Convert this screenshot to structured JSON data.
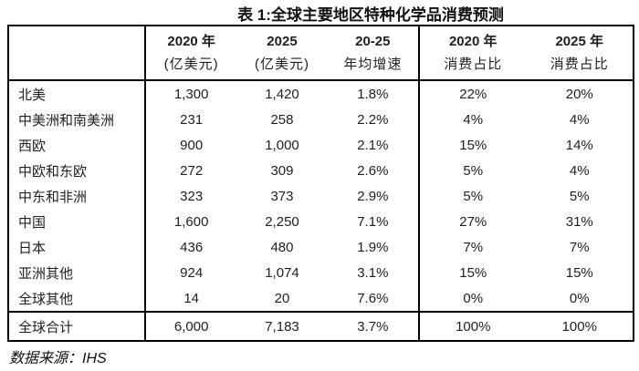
{
  "title": "表 1:全球主要地区特种化学品消费预测",
  "source_note": "数据来源：IHS",
  "colors": {
    "text": "#1f1f1f",
    "border": "#000000",
    "background": "#ffffff"
  },
  "table": {
    "header": {
      "region": "",
      "col1_line1": "2020 年",
      "col1_line2": "(亿美元)",
      "col2_line1": "2025",
      "col2_line2": "(亿美元)",
      "col3_line1": "20-25",
      "col3_line2": "年均增速",
      "col4_line1": "2020 年",
      "col4_line2": "消费占比",
      "col5_line1": "2025 年",
      "col5_line2": "消费占比"
    },
    "rows": [
      {
        "label": "北美",
        "v2020": "1,300",
        "v2025": "1,420",
        "growth": "1.8%",
        "share2020": "22%",
        "share2025": "20%"
      },
      {
        "label": "中美洲和南美洲",
        "v2020": "231",
        "v2025": "258",
        "growth": "2.2%",
        "share2020": "4%",
        "share2025": "4%"
      },
      {
        "label": "西欧",
        "v2020": "900",
        "v2025": "1,000",
        "growth": "2.1%",
        "share2020": "15%",
        "share2025": "14%"
      },
      {
        "label": "中欧和东欧",
        "v2020": "272",
        "v2025": "309",
        "growth": "2.6%",
        "share2020": "5%",
        "share2025": "4%"
      },
      {
        "label": "中东和非洲",
        "v2020": "323",
        "v2025": "373",
        "growth": "2.9%",
        "share2020": "5%",
        "share2025": "5%"
      },
      {
        "label": "中国",
        "v2020": "1,600",
        "v2025": "2,250",
        "growth": "7.1%",
        "share2020": "27%",
        "share2025": "31%"
      },
      {
        "label": "日本",
        "v2020": "436",
        "v2025": "480",
        "growth": "1.9%",
        "share2020": "7%",
        "share2025": "7%"
      },
      {
        "label": "亚洲其他",
        "v2020": "924",
        "v2025": "1,074",
        "growth": "3.1%",
        "share2020": "15%",
        "share2025": "15%"
      },
      {
        "label": "全球其他",
        "v2020": "14",
        "v2025": "20",
        "growth": "7.6%",
        "share2020": "0%",
        "share2025": "0%"
      }
    ],
    "total": {
      "label": "全球合计",
      "v2020": "6,000",
      "v2025": "7,183",
      "growth": "3.7%",
      "share2020": "100%",
      "share2025": "100%"
    }
  }
}
